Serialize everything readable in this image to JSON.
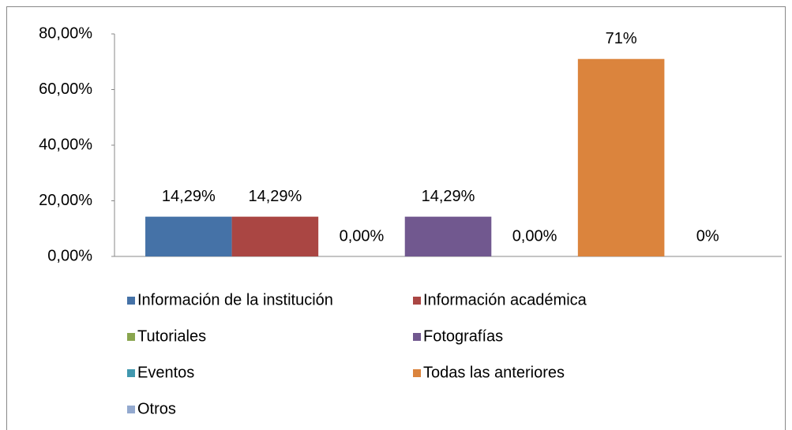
{
  "chart_data": {
    "type": "bar",
    "categories": [
      null
    ],
    "series": [
      {
        "name": "Información de la institución",
        "color": "#4572a7",
        "values": [
          14.29
        ],
        "value_labels": [
          "14,29%"
        ]
      },
      {
        "name": "Información académica",
        "color": "#aa4643",
        "values": [
          14.29
        ],
        "value_labels": [
          "14,29%"
        ]
      },
      {
        "name": "Tutoriales",
        "color": "#89a54e",
        "values": [
          0
        ],
        "value_labels": [
          "0,00%"
        ]
      },
      {
        "name": "Fotografías",
        "color": "#71588f",
        "values": [
          14.29
        ],
        "value_labels": [
          "14,29%"
        ]
      },
      {
        "name": "Eventos",
        "color": "#4198af",
        "values": [
          0
        ],
        "value_labels": [
          "0,00%"
        ]
      },
      {
        "name": "Todas las anteriores",
        "color": "#db843d",
        "values": [
          71
        ],
        "value_labels": [
          "71%"
        ]
      },
      {
        "name": "Otros",
        "color": "#93a9cf",
        "values": [
          0
        ],
        "value_labels": [
          "0%"
        ]
      }
    ],
    "ylim": [
      0,
      80
    ],
    "yticks": [
      {
        "value": 0,
        "label": "0,00%"
      },
      {
        "value": 20,
        "label": "20,00%"
      },
      {
        "value": 40,
        "label": "40,00%"
      },
      {
        "value": 60,
        "label": "60,00%"
      },
      {
        "value": 80,
        "label": "80,00%"
      }
    ],
    "grid": false,
    "legend": "bottom"
  }
}
